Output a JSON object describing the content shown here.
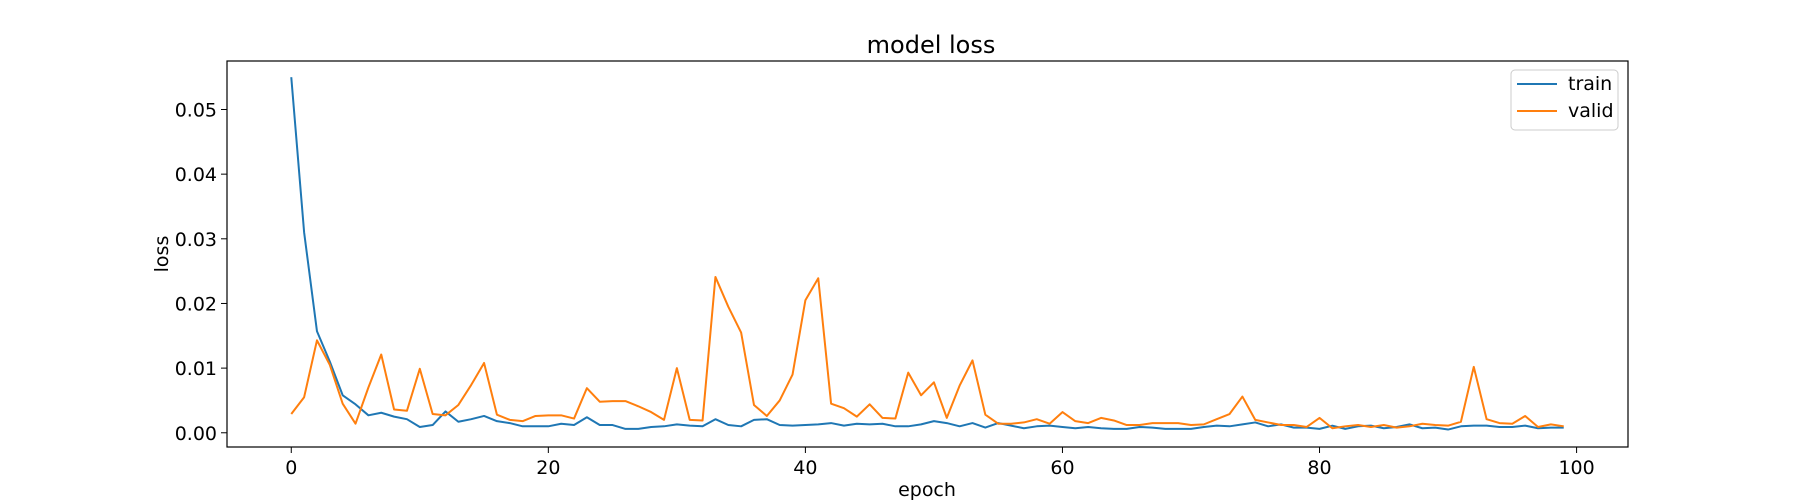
{
  "chart_data": {
    "type": "line",
    "title": "model loss",
    "xlabel": "epoch",
    "ylabel": "loss",
    "xlim": [
      -5,
      104
    ],
    "ylim": [
      -0.0022,
      0.0575
    ],
    "xticks": [
      0,
      20,
      40,
      60,
      80,
      100
    ],
    "yticks": [
      0.0,
      0.01,
      0.02,
      0.03,
      0.04,
      0.05
    ],
    "ytick_labels": [
      "0.00",
      "0.01",
      "0.02",
      "0.03",
      "0.04",
      "0.05"
    ],
    "grid": false,
    "legend": "upper-right",
    "x": [
      0,
      1,
      2,
      3,
      4,
      5,
      6,
      7,
      8,
      9,
      10,
      11,
      12,
      13,
      14,
      15,
      16,
      17,
      18,
      19,
      20,
      21,
      22,
      23,
      24,
      25,
      26,
      27,
      28,
      29,
      30,
      31,
      32,
      33,
      34,
      35,
      36,
      37,
      38,
      39,
      40,
      41,
      42,
      43,
      44,
      45,
      46,
      47,
      48,
      49,
      50,
      51,
      52,
      53,
      54,
      55,
      56,
      57,
      58,
      59,
      60,
      61,
      62,
      63,
      64,
      65,
      66,
      67,
      68,
      69,
      70,
      71,
      72,
      73,
      74,
      75,
      76,
      77,
      78,
      79,
      80,
      81,
      82,
      83,
      84,
      85,
      86,
      87,
      88,
      89,
      90,
      91,
      92,
      93,
      94,
      95,
      96,
      97,
      98,
      99
    ],
    "series": [
      {
        "name": "train",
        "color": "#1f77b4",
        "values": [
          0.055,
          0.031,
          0.0157,
          0.011,
          0.0058,
          0.0044,
          0.0027,
          0.0031,
          0.0025,
          0.0021,
          0.0009,
          0.0012,
          0.0033,
          0.0017,
          0.0021,
          0.0026,
          0.0018,
          0.0015,
          0.001,
          0.001,
          0.001,
          0.0014,
          0.0012,
          0.0024,
          0.0012,
          0.0012,
          0.0006,
          0.0006,
          0.0009,
          0.001,
          0.0013,
          0.0011,
          0.001,
          0.0021,
          0.0012,
          0.001,
          0.002,
          0.0021,
          0.0012,
          0.0011,
          0.0012,
          0.0013,
          0.0015,
          0.0011,
          0.0014,
          0.0013,
          0.0014,
          0.001,
          0.001,
          0.0013,
          0.0018,
          0.0015,
          0.001,
          0.0015,
          0.0008,
          0.0015,
          0.0011,
          0.0007,
          0.001,
          0.0011,
          0.0009,
          0.0007,
          0.0009,
          0.0007,
          0.0006,
          0.0006,
          0.0009,
          0.0008,
          0.0006,
          0.0006,
          0.0006,
          0.0009,
          0.0011,
          0.001,
          0.0013,
          0.0016,
          0.001,
          0.0013,
          0.0008,
          0.0008,
          0.0006,
          0.0011,
          0.0006,
          0.001,
          0.0011,
          0.0007,
          0.0009,
          0.0013,
          0.0007,
          0.0008,
          0.0005,
          0.001,
          0.0011,
          0.0011,
          0.0009,
          0.0009,
          0.0011,
          0.0007,
          0.0008,
          0.0008
        ]
      },
      {
        "name": "valid",
        "color": "#ff7f0e",
        "values": [
          0.0029,
          0.0055,
          0.0143,
          0.0105,
          0.0045,
          0.0014,
          0.007,
          0.0121,
          0.0036,
          0.0034,
          0.0099,
          0.0029,
          0.0027,
          0.0043,
          0.0074,
          0.0108,
          0.0028,
          0.002,
          0.0018,
          0.0026,
          0.0027,
          0.0027,
          0.0022,
          0.0069,
          0.0048,
          0.0049,
          0.0049,
          0.0041,
          0.0032,
          0.002,
          0.01,
          0.002,
          0.0019,
          0.0241,
          0.0195,
          0.0155,
          0.0043,
          0.0026,
          0.005,
          0.009,
          0.0205,
          0.0239,
          0.0045,
          0.0038,
          0.0025,
          0.0044,
          0.0023,
          0.0022,
          0.0093,
          0.0058,
          0.0078,
          0.0023,
          0.0073,
          0.0112,
          0.0028,
          0.0014,
          0.0014,
          0.0016,
          0.0021,
          0.0014,
          0.0032,
          0.0018,
          0.0015,
          0.0023,
          0.0019,
          0.0012,
          0.0012,
          0.0015,
          0.0015,
          0.0015,
          0.0012,
          0.0013,
          0.0021,
          0.0029,
          0.0056,
          0.002,
          0.0016,
          0.0012,
          0.0012,
          0.0009,
          0.0023,
          0.0007,
          0.001,
          0.0012,
          0.0009,
          0.0012,
          0.0008,
          0.001,
          0.0014,
          0.0012,
          0.0011,
          0.0017,
          0.0102,
          0.0021,
          0.0015,
          0.0014,
          0.0026,
          0.0009,
          0.0013,
          0.001
        ]
      }
    ]
  }
}
